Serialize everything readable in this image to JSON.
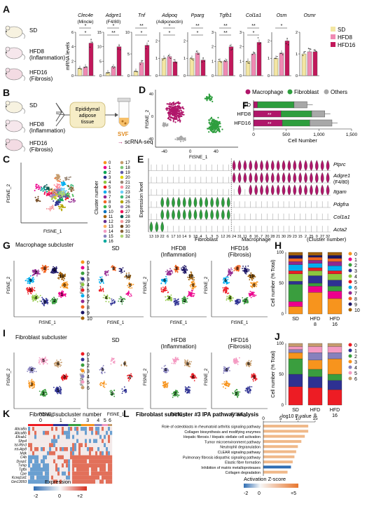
{
  "colors": {
    "sd": "#f3e6a2",
    "hfd8": "#f08ab3",
    "hfd16": "#c2185b",
    "macrophage": "#b0166a",
    "fibroblast": "#2e9e3e",
    "others": "#a8a8a8",
    "ipa_bar": "#f0b98a",
    "ipa_neg": "#2f6db3"
  },
  "panel_letters": [
    "A",
    "B",
    "C",
    "D",
    "E",
    "F",
    "G",
    "H",
    "I",
    "J",
    "K",
    "L"
  ],
  "panelA": {
    "groups": [
      {
        "name": "SD",
        "sub": ""
      },
      {
        "name": "HFD8",
        "sub": "(Inflammation)"
      },
      {
        "name": "HFD16",
        "sub": "(Fibrosis)"
      }
    ],
    "ylabel": "mRNA levels",
    "legend": [
      "SD",
      "HFD8",
      "HFD16"
    ],
    "genes": [
      {
        "name": "Clec4e",
        "sub": "(Mincle)",
        "values": [
          1,
          1.2,
          4.5
        ],
        "ymax": 6,
        "ticks": [
          "0",
          "2",
          "4",
          "6"
        ],
        "sig": [
          "*",
          "*"
        ]
      },
      {
        "name": "Adgre1",
        "sub": "(F4/80)",
        "values": [
          1,
          3,
          10
        ],
        "ymax": 15,
        "ticks": [
          "0",
          "5",
          "10",
          "15"
        ],
        "sig": [
          "*",
          "**"
        ]
      },
      {
        "name": "Tnf",
        "sub": "",
        "values": [
          1,
          3,
          7
        ],
        "ymax": 10,
        "ticks": [
          "0",
          "5",
          "10"
        ],
        "sig": [
          "**",
          "*"
        ]
      },
      {
        "name": "Adipoq",
        "sub": "(Adiponectin)",
        "values": [
          1,
          1.1,
          0.8
        ],
        "ymax": 2.5,
        "ticks": [
          "0",
          "1",
          "2"
        ],
        "sig": [
          "*",
          "*"
        ]
      },
      {
        "name": "Pparg",
        "sub": "",
        "values": [
          1,
          1.3,
          0.9
        ],
        "ymax": 2.5,
        "ticks": [
          "0",
          "1",
          "2"
        ],
        "sig": [
          "**",
          "*"
        ]
      },
      {
        "name": "Tgfb1",
        "sub": "",
        "values": [
          1,
          1,
          2
        ],
        "ymax": 3,
        "ticks": [
          "0",
          "1",
          "2",
          "3"
        ],
        "sig": [
          "**",
          "**"
        ]
      },
      {
        "name": "Col1a1",
        "sub": "",
        "values": [
          1,
          1.5,
          2.3
        ],
        "ymax": 3,
        "ticks": [
          "0",
          "1",
          "2",
          "3"
        ],
        "sig": [
          "**",
          "*"
        ]
      },
      {
        "name": "Osm",
        "sub": "",
        "values": [
          1,
          1.3,
          2
        ],
        "ymax": 2.5,
        "ticks": [
          "0",
          "1",
          "2"
        ],
        "sig": [
          "*"
        ]
      },
      {
        "name": "Osmr",
        "sub": "",
        "values": [
          1,
          1.1,
          1.1
        ],
        "ymax": 2,
        "ticks": [
          "0",
          "1",
          "2"
        ],
        "sig": []
      }
    ]
  },
  "panelB": {
    "groups": [
      {
        "name": "SD",
        "sub": ""
      },
      {
        "name": "HFD8",
        "sub": "(Inflammation)"
      },
      {
        "name": "HFD16",
        "sub": "(Fibrosis)"
      }
    ],
    "tissue": [
      "Epididymal",
      "adipose",
      "tissue"
    ],
    "svf": "SVF",
    "arrow_text": "scRNA-seq"
  },
  "panelD": {
    "legend": [
      "Macrophage",
      "Fibroblast",
      "Others"
    ],
    "xlabel": "FtSNE_1",
    "ylabel": "FtSNE_2",
    "xticks": [
      "-40",
      "0",
      "40"
    ],
    "yticks": [
      "-40",
      "0",
      "40"
    ]
  },
  "panelF": {
    "categories": [
      "SD",
      "HFD8",
      "HFD16"
    ],
    "xlabel": "Cell Number",
    "xticks": [
      "0",
      "500",
      "1,000",
      "1,500"
    ],
    "stars": [
      "",
      "**",
      "**"
    ]
  },
  "chart_data": [
    {
      "type": "bar",
      "title": "Cell Number",
      "categories": [
        "SD",
        "HFD8",
        "HFD16"
      ],
      "series": [
        {
          "name": "Macrophage",
          "values": [
            60,
            420,
            440
          ]
        },
        {
          "name": "Fibroblast",
          "values": [
            560,
            470,
            420
          ]
        },
        {
          "name": "Others",
          "values": [
            200,
            200,
            340
          ]
        }
      ],
      "xlabel": "Cell Number",
      "xlim": [
        0,
        1500
      ]
    },
    {
      "type": "bar",
      "title": "Fibroblast subcluster #3 IPA pathway analysis",
      "categories": [
        "Role of osteoblasts in rheumatoid arthritis signaling pathway",
        "Collagen biosynthesis and modifying enzymes",
        "Hepatic fibrosis / Hepatic stellate cell activation",
        "Tumor microenvironment pathway",
        "Neutrophil degranulation",
        "CLEAR signaling pathway",
        "Pulmonary fibrosis idiopathic signaling pathway",
        "Elastic fibre formation",
        "Inhibition of matrix metalloproteases",
        "Collagen degradation"
      ],
      "values": [
        13,
        13,
        12,
        11,
        10,
        9.5,
        9,
        8.5,
        8,
        7
      ],
      "xlabel": "-log10 P value",
      "xlim": [
        0,
        15
      ]
    }
  ],
  "panelC": {
    "xlabel": "FtSNE_1",
    "ylabel": "FtSNE_2",
    "legend_title": "Cluster number",
    "clusters": [
      "0",
      "1",
      "2",
      "3",
      "4",
      "5",
      "6",
      "7",
      "8",
      "9",
      "10",
      "11",
      "12",
      "13",
      "14",
      "15",
      "16",
      "17",
      "18",
      "19",
      "20",
      "21",
      "22",
      "23",
      "24",
      "25",
      "26",
      "27",
      "28",
      "29",
      "30",
      "31",
      "32"
    ]
  },
  "panelE": {
    "ylabel": "Expression level",
    "genes": [
      "Ptprc",
      "Adgre1",
      "(F4/80)",
      "Itgam",
      "Pdgfra",
      "Col1a1",
      "Acta2"
    ],
    "group_labels": [
      "Fibroblast",
      "Macrophage",
      "(Cluster number)"
    ],
    "clusters": [
      "13",
      "19",
      "22",
      "6",
      "17",
      "10",
      "14",
      "9",
      "18",
      "4",
      "1",
      "3",
      "5",
      "12",
      "26",
      "24",
      "31",
      "11",
      "8",
      "16",
      "7",
      "20",
      "28",
      "21",
      "30",
      "29",
      "23",
      "15",
      "2",
      "25",
      "0",
      "27",
      "32"
    ]
  },
  "panelG": {
    "title": "Macrophage subcluster",
    "labels": [
      "0",
      "1",
      "2",
      "3",
      "4",
      "5",
      "6",
      "7",
      "8",
      "9",
      "10"
    ],
    "groups": [
      {
        "name": "SD",
        "sub": ""
      },
      {
        "name": "HFD8",
        "sub": "(Inflammation)"
      },
      {
        "name": "HFD16",
        "sub": "(Fibrosis)"
      }
    ]
  },
  "panelH": {
    "ylabel": "Cell number (% Total)",
    "categories": [
      "SD",
      "HFD 8",
      "HFD 16"
    ],
    "yticks": [
      "0",
      "50",
      "100"
    ],
    "legend": [
      "0",
      "1",
      "2",
      "3",
      "4",
      "5",
      "6",
      "7",
      "8",
      "9",
      "10"
    ]
  },
  "panelI": {
    "title": "Fibroblast subcluster",
    "labels": [
      "0",
      "1",
      "2",
      "3",
      "4",
      "5",
      "6"
    ],
    "groups": [
      {
        "name": "SD",
        "sub": ""
      },
      {
        "name": "HFD8",
        "sub": "(Inflammation)"
      },
      {
        "name": "HFD16",
        "sub": "(Fibrosis)"
      }
    ]
  },
  "panelJ": {
    "ylabel": "Cell number (% Total)",
    "categories": [
      "SD",
      "HFD 8",
      "HFD 16"
    ],
    "yticks": [
      "0",
      "50",
      "100"
    ],
    "legend": [
      "0",
      "1",
      "2",
      "3",
      "4",
      "5",
      "6"
    ]
  },
  "panelK": {
    "title": "Fibroblast subcluster number",
    "columns": [
      "0",
      "1",
      "2",
      "3",
      "4",
      "5",
      "6"
    ],
    "genes": [
      "Abca8a",
      "Abca8b",
      "Efcab1",
      "Sfrp4",
      "Ist-Rtn3",
      "mt-Atp8",
      "Mdk",
      "C4b",
      "Dusp1",
      "Txnip",
      "Tgfbi",
      "Cpe",
      "Kcnq1ot1",
      "Gm13093"
    ],
    "legend_title": "Expression",
    "legend_ticks": [
      "-2",
      "0",
      "+2"
    ]
  },
  "panelL": {
    "title": "Fibroblast subcluster #3 IPA pathway analysis",
    "axis_title": "-log10 P value",
    "ticks": [
      "0",
      "5",
      "10",
      "15"
    ],
    "zscore_title": "Activation Z-score",
    "zscore_ticks": [
      "-2",
      "0",
      "+5"
    ]
  }
}
